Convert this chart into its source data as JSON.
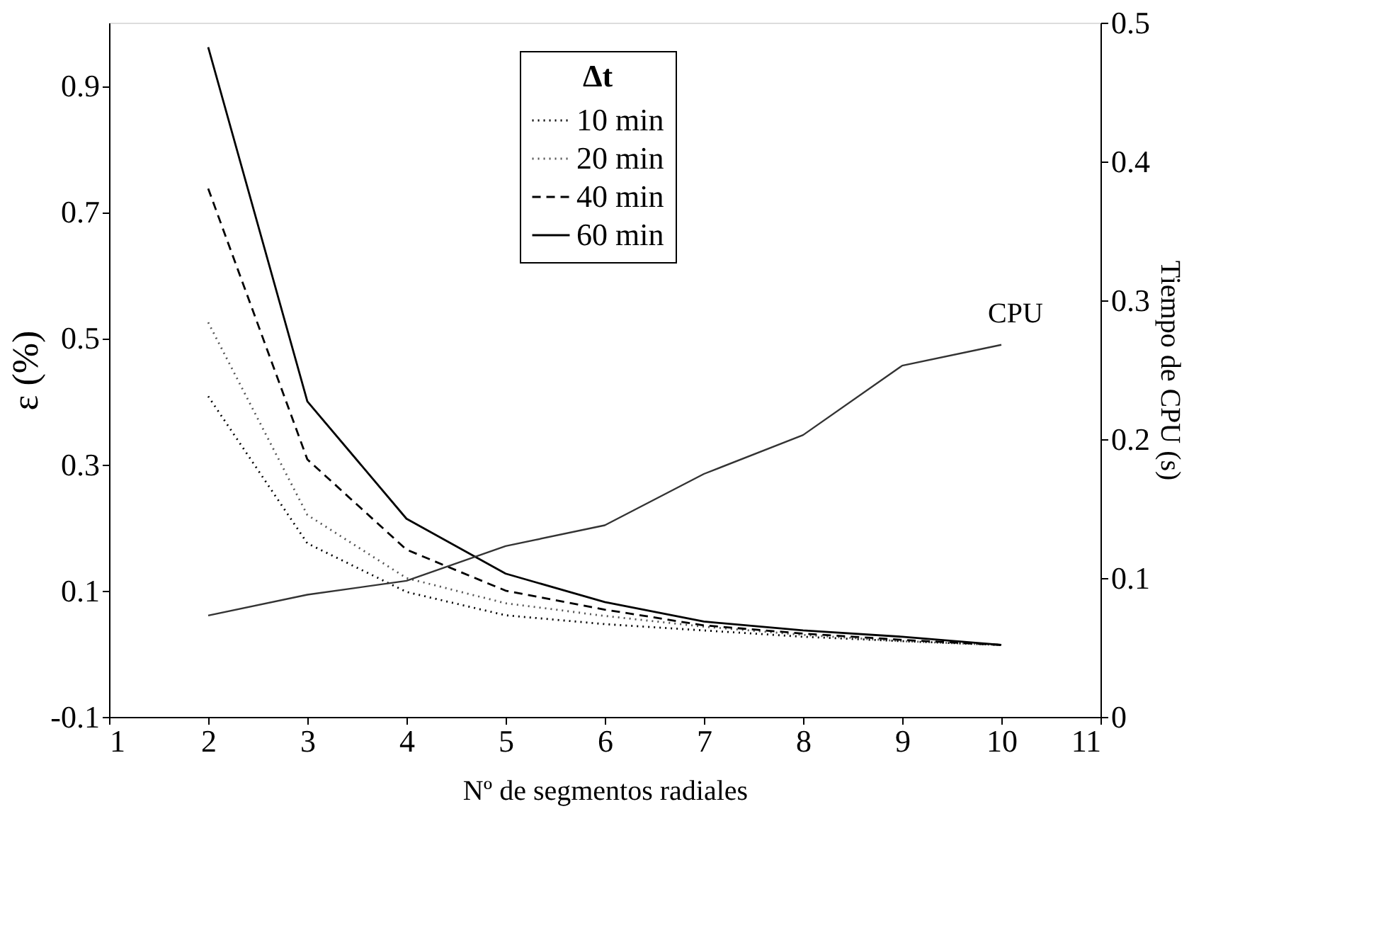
{
  "chart_data": {
    "type": "line",
    "xlabel": "Nº de segmentos radiales",
    "ylabel": "ε (%)",
    "y2label": "Tiempo de CPU (s)",
    "legend_title": "Δt",
    "x": [
      2,
      3,
      4,
      5,
      6,
      7,
      8,
      9,
      10
    ],
    "series": [
      {
        "name": "10 min",
        "color": "#000000",
        "line_style": "dotted",
        "values": [
          0.408,
          0.175,
          0.098,
          0.061,
          0.047,
          0.037,
          0.027,
          0.02,
          0.014
        ]
      },
      {
        "name": "20 min",
        "color": "#555555",
        "line_style": "dotted",
        "values": [
          0.525,
          0.22,
          0.12,
          0.08,
          0.06,
          0.043,
          0.03,
          0.02,
          0.014
        ]
      },
      {
        "name": "40 min",
        "color": "#000000",
        "line_style": "dashed",
        "values": [
          0.737,
          0.308,
          0.165,
          0.1,
          0.07,
          0.045,
          0.032,
          0.022,
          0.014
        ]
      },
      {
        "name": "60 min",
        "color": "#000000",
        "line_style": "solid",
        "values": [
          0.961,
          0.4,
          0.214,
          0.127,
          0.082,
          0.051,
          0.037,
          0.027,
          0.014
        ]
      },
      {
        "name": "CPU",
        "color": "#333333",
        "line_style": "solid",
        "axis": "y2",
        "values": [
          0.073,
          0.088,
          0.098,
          0.123,
          0.138,
          0.175,
          0.203,
          0.253,
          0.268
        ]
      }
    ],
    "xlim": [
      1,
      11
    ],
    "xticks": [
      1,
      2,
      3,
      4,
      5,
      6,
      7,
      8,
      9,
      10,
      11
    ],
    "ylim": [
      -0.1,
      1.0
    ],
    "yticks": [
      -0.1,
      0.1,
      0.3,
      0.5,
      0.7,
      0.9
    ],
    "y2lim": [
      0,
      0.5
    ],
    "y2ticks": [
      0,
      0.1,
      0.2,
      0.3,
      0.4,
      0.5
    ],
    "grid": false,
    "legend": "top",
    "marker": "none"
  }
}
